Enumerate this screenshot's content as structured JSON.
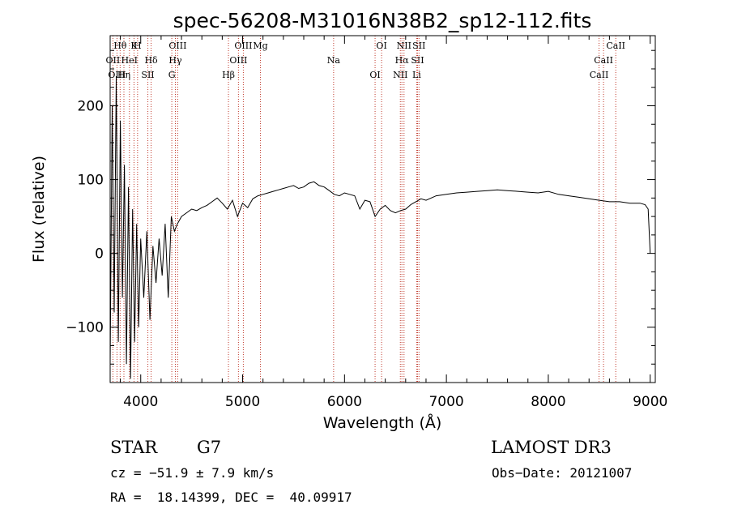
{
  "chart_data": {
    "type": "line",
    "title": "spec-56208-M31016N38B2_sp12-112.fits",
    "xlabel": "Wavelength (Å)",
    "ylabel": "Flux (relative)",
    "xlim": [
      3700,
      9050
    ],
    "ylim": [
      -175,
      295
    ],
    "x_ticks": [
      4000,
      5000,
      6000,
      7000,
      8000,
      9000
    ],
    "y_ticks": [
      -100,
      0,
      100,
      200
    ],
    "x_tick_labels": [
      "4000",
      "5000",
      "6000",
      "7000",
      "8000",
      "9000"
    ],
    "y_tick_labels": [
      "−100",
      "0",
      "100",
      "200"
    ],
    "grid": false,
    "line_color": "#000000",
    "marker_color": "#c0392b",
    "series": [
      {
        "name": "spectrum",
        "x": [
          3700,
          3720,
          3740,
          3760,
          3780,
          3800,
          3820,
          3840,
          3860,
          3880,
          3900,
          3920,
          3940,
          3960,
          3980,
          4000,
          4030,
          4060,
          4090,
          4120,
          4150,
          4180,
          4210,
          4240,
          4270,
          4300,
          4330,
          4360,
          4400,
          4450,
          4500,
          4550,
          4600,
          4650,
          4700,
          4750,
          4800,
          4850,
          4900,
          4950,
          5000,
          5050,
          5100,
          5150,
          5200,
          5250,
          5300,
          5350,
          5400,
          5450,
          5500,
          5550,
          5600,
          5650,
          5700,
          5750,
          5800,
          5850,
          5900,
          5950,
          6000,
          6050,
          6100,
          6150,
          6200,
          6250,
          6300,
          6350,
          6400,
          6450,
          6500,
          6550,
          6600,
          6650,
          6700,
          6750,
          6800,
          6900,
          7000,
          7100,
          7200,
          7300,
          7400,
          7500,
          7600,
          7700,
          7800,
          7900,
          8000,
          8100,
          8200,
          8300,
          8400,
          8500,
          8600,
          8700,
          8800,
          8900,
          8950,
          8980,
          9000
        ],
        "y": [
          -150,
          200,
          -80,
          240,
          -120,
          180,
          -60,
          120,
          -150,
          90,
          -170,
          60,
          -120,
          40,
          -100,
          20,
          -60,
          30,
          -90,
          10,
          -40,
          20,
          -30,
          40,
          -60,
          50,
          30,
          40,
          50,
          55,
          60,
          58,
          62,
          65,
          70,
          75,
          68,
          60,
          72,
          50,
          68,
          62,
          74,
          78,
          80,
          82,
          84,
          86,
          88,
          90,
          92,
          88,
          90,
          95,
          97,
          92,
          90,
          85,
          80,
          78,
          82,
          80,
          78,
          60,
          72,
          70,
          50,
          60,
          65,
          58,
          55,
          58,
          60,
          66,
          70,
          74,
          72,
          78,
          80,
          82,
          83,
          84,
          85,
          86,
          85,
          84,
          83,
          82,
          84,
          80,
          78,
          76,
          74,
          72,
          70,
          70,
          68,
          68,
          66,
          60,
          0
        ]
      }
    ],
    "line_markers": [
      {
        "label": "Hθ",
        "x": 3798
      },
      {
        "label": "OII",
        "x": 3727
      },
      {
        "label": "OIII",
        "x": 3767
      },
      {
        "label": "K",
        "x": 3934
      },
      {
        "label": "HeI",
        "x": 3889
      },
      {
        "label": "Hη",
        "x": 3835
      },
      {
        "label": "H",
        "x": 3969
      },
      {
        "label": "Hδ",
        "x": 4102
      },
      {
        "label": "SII",
        "x": 4070
      },
      {
        "label": "OIII",
        "x": 4363
      },
      {
        "label": "Hγ",
        "x": 4340
      },
      {
        "label": "G",
        "x": 4305
      },
      {
        "label": "OIII",
        "x": 5007
      },
      {
        "label": "OIII",
        "x": 4959
      },
      {
        "label": "Hβ",
        "x": 4861
      },
      {
        "label": "Mg",
        "x": 5175
      },
      {
        "label": "Na",
        "x": 5893
      },
      {
        "label": "OI",
        "x": 6300
      },
      {
        "label": "OI",
        "x": 6364
      },
      {
        "label": "Hα",
        "x": 6563
      },
      {
        "label": "NII",
        "x": 6548
      },
      {
        "label": "NII",
        "x": 6584
      },
      {
        "label": "SII",
        "x": 6717
      },
      {
        "label": "Li",
        "x": 6708
      },
      {
        "label": "SII",
        "x": 6731
      },
      {
        "label": "CaII",
        "x": 8542
      },
      {
        "label": "CaII",
        "x": 8498
      },
      {
        "label": "CaII",
        "x": 8662
      }
    ]
  },
  "info": {
    "class": "STAR",
    "subclass": "G7",
    "survey": "LAMOST DR3",
    "cz": "cz = −51.9 ± 7.9 km/s",
    "obs_date": "Obs−Date: 20121007",
    "coords": "RA =  18.14399, DEC =  40.09917"
  }
}
